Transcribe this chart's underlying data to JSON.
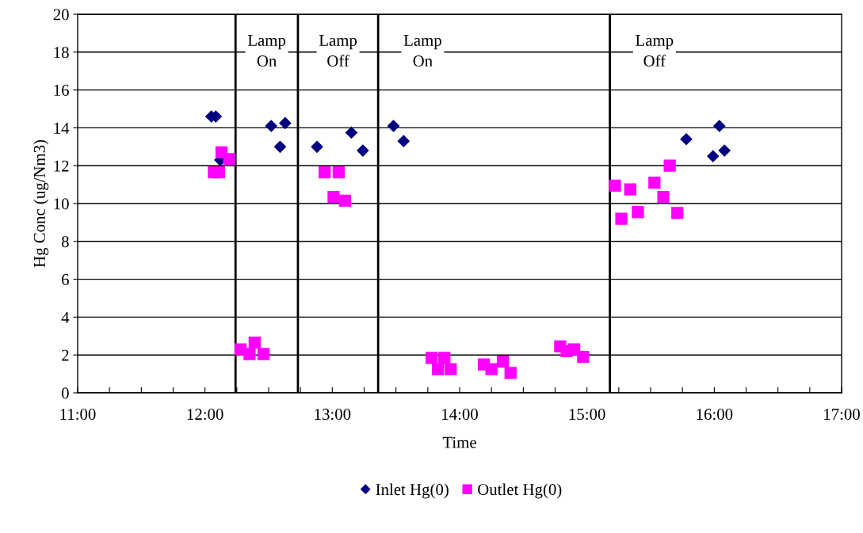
{
  "chart_data": {
    "type": "scatter",
    "xlabel": "Time",
    "ylabel": "Hg Conc (ug/Nm3)",
    "xlim": [
      11,
      17
    ],
    "ylim": [
      0,
      20
    ],
    "xticks": [
      {
        "value": 11,
        "label": "11:00"
      },
      {
        "value": 11.25,
        "label": null
      },
      {
        "value": 11.5,
        "label": null
      },
      {
        "value": 11.75,
        "label": null
      },
      {
        "value": 12,
        "label": "12:00"
      },
      {
        "value": 12.25,
        "label": null
      },
      {
        "value": 12.5,
        "label": null
      },
      {
        "value": 12.75,
        "label": null
      },
      {
        "value": 13,
        "label": "13:00"
      },
      {
        "value": 13.25,
        "label": null
      },
      {
        "value": 13.5,
        "label": null
      },
      {
        "value": 13.75,
        "label": null
      },
      {
        "value": 14,
        "label": "14:00"
      },
      {
        "value": 14.25,
        "label": null
      },
      {
        "value": 14.5,
        "label": null
      },
      {
        "value": 14.75,
        "label": null
      },
      {
        "value": 15,
        "label": "15:00"
      },
      {
        "value": 15.25,
        "label": null
      },
      {
        "value": 15.5,
        "label": null
      },
      {
        "value": 15.75,
        "label": null
      },
      {
        "value": 16,
        "label": "16:00"
      },
      {
        "value": 16.25,
        "label": null
      },
      {
        "value": 16.5,
        "label": null
      },
      {
        "value": 16.75,
        "label": null
      },
      {
        "value": 17,
        "label": "17:00"
      }
    ],
    "yticks": [
      0,
      2,
      4,
      6,
      8,
      10,
      12,
      14,
      16,
      18,
      20
    ],
    "grid": "y",
    "legend": "bottom",
    "ref_lines": [
      {
        "axis": "x",
        "value": 12.24,
        "color": "#000000",
        "label": "Lamp\nOn"
      },
      {
        "axis": "x",
        "value": 12.73,
        "color": "#000000",
        "label": "Lamp\nOff"
      },
      {
        "axis": "x",
        "value": 13.36,
        "color": "#000000",
        "label": "Lamp\nOn"
      },
      {
        "axis": "x",
        "value": 15.18,
        "color": "#000000",
        "label": "Lamp\nOff"
      }
    ],
    "series": [
      {
        "name": "Inlet Hg(0)",
        "color": "#000080",
        "marker": "diamond",
        "x": [
          12.05,
          12.085,
          12.12,
          12.52,
          12.63,
          12.59,
          12.88,
          13.15,
          13.24,
          13.48,
          13.56,
          15.78,
          15.99,
          16.04,
          16.08
        ],
        "values": [
          14.6,
          14.6,
          12.3,
          14.1,
          14.25,
          13.0,
          13.0,
          13.75,
          12.8,
          14.1,
          13.3,
          13.4,
          12.5,
          14.1,
          12.8
        ]
      },
      {
        "name": "Outlet Hg(0)",
        "color": "#ff00ff",
        "marker": "square",
        "x": [
          12.07,
          12.11,
          12.13,
          12.19,
          12.28,
          12.35,
          12.39,
          12.46,
          12.94,
          13.05,
          13.01,
          13.1,
          13.78,
          13.83,
          13.88,
          13.93,
          14.19,
          14.25,
          14.34,
          14.4,
          14.79,
          14.84,
          14.9,
          14.97,
          15.22,
          15.27,
          15.34,
          15.4,
          15.53,
          15.6,
          15.65,
          15.71
        ],
        "values": [
          11.65,
          11.65,
          12.7,
          12.35,
          2.3,
          2.05,
          2.65,
          2.05,
          11.65,
          11.65,
          10.35,
          10.15,
          1.85,
          1.25,
          1.85,
          1.25,
          1.5,
          1.25,
          1.65,
          1.05,
          2.45,
          2.2,
          2.3,
          1.9,
          10.95,
          9.2,
          10.75,
          9.55,
          11.1,
          10.35,
          12.0,
          9.5
        ]
      }
    ]
  }
}
